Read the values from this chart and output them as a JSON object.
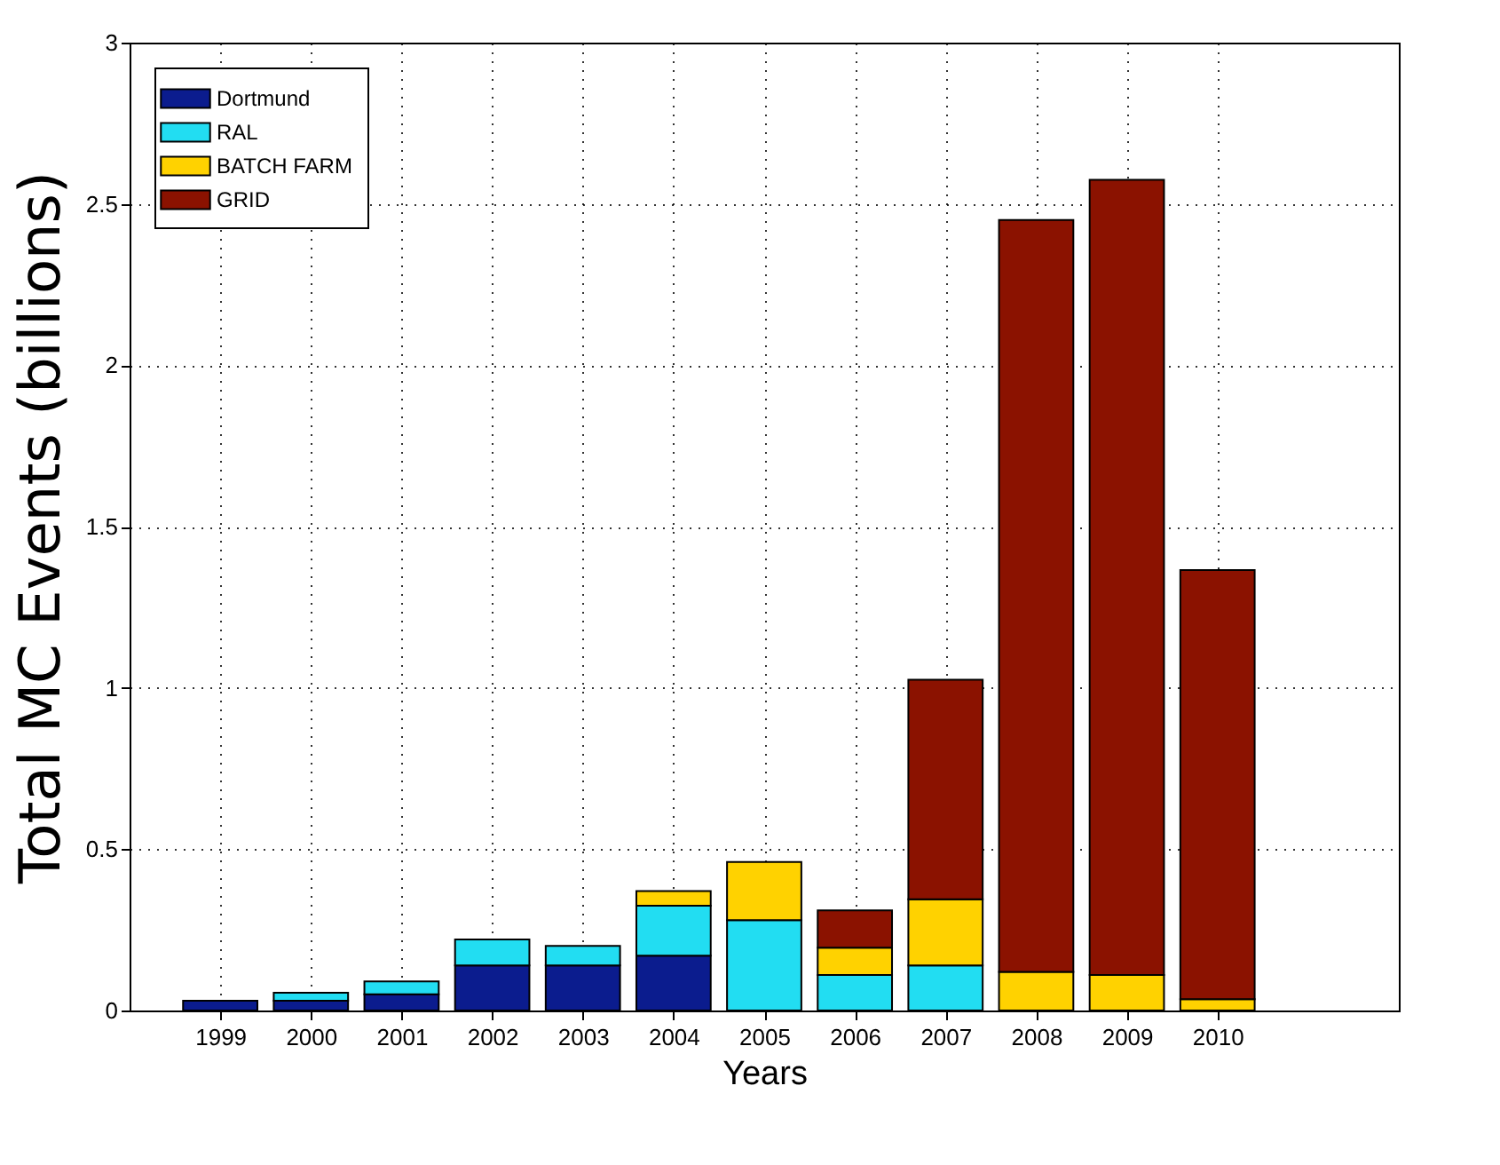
{
  "chart_data": {
    "type": "bar",
    "stacked": true,
    "xlabel": "Years",
    "ylabel": "Total MC Events (billions)",
    "x": [
      1999,
      2000,
      2001,
      2002,
      2003,
      2004,
      2005,
      2006,
      2007,
      2008,
      2009,
      2010
    ],
    "series": [
      {
        "name": "Dortmund",
        "color": "#0b1c8e",
        "values": [
          0.03,
          0.03,
          0.05,
          0.14,
          0.14,
          0.17,
          null,
          null,
          null,
          null,
          null,
          null
        ]
      },
      {
        "name": "RAL",
        "color": "#22ddf2",
        "values": [
          null,
          0.025,
          0.04,
          0.08,
          0.06,
          0.155,
          0.28,
          0.11,
          0.14,
          null,
          null,
          null
        ]
      },
      {
        "name": "BATCH FARM",
        "color": "#ffd200",
        "values": [
          null,
          null,
          null,
          null,
          null,
          0.045,
          0.18,
          0.085,
          0.205,
          0.12,
          0.11,
          0.035
        ]
      },
      {
        "name": "GRID",
        "color": "#8b1200",
        "values": [
          null,
          null,
          null,
          null,
          null,
          null,
          null,
          0.115,
          0.68,
          2.33,
          2.465,
          1.33
        ]
      }
    ],
    "xlim": [
      1998,
      2012
    ],
    "xticks": [
      1999,
      2000,
      2001,
      2002,
      2003,
      2004,
      2005,
      2006,
      2007,
      2008,
      2009,
      2010
    ],
    "ylim": [
      0,
      3
    ],
    "yticks": [
      0,
      0.5,
      1,
      1.5,
      2,
      2.5,
      3
    ],
    "grid": true,
    "legend": "top left"
  }
}
